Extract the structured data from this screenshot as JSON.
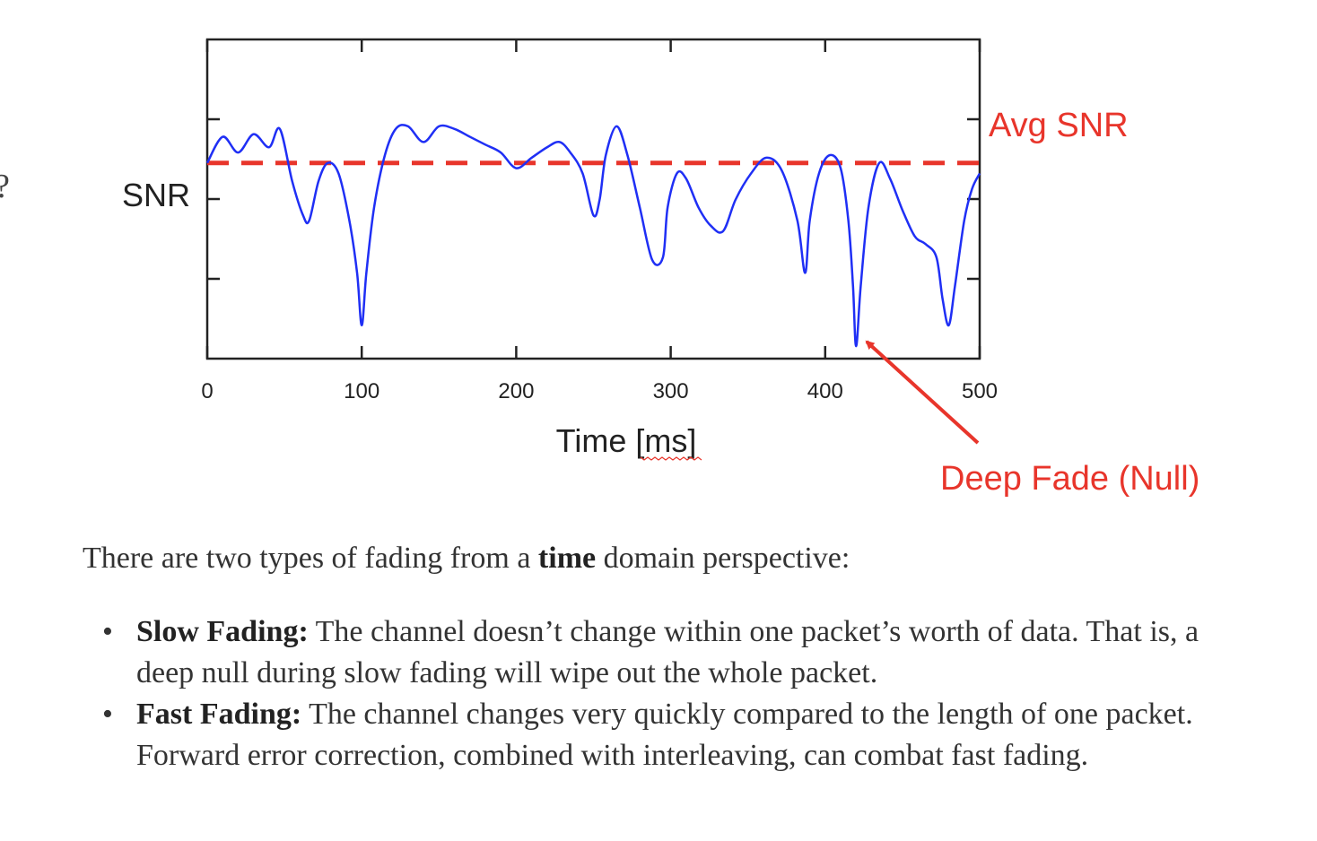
{
  "chart_data": {
    "type": "line",
    "xlabel": "Time [ms]",
    "ylabel": "SNR",
    "xlim": [
      0,
      500
    ],
    "x_ticks": [
      "0",
      "100",
      "200",
      "300",
      "400",
      "500"
    ],
    "y_range": [
      0,
      10
    ],
    "grid": false,
    "line_color": "#1f2ff5",
    "avg_line_color": "#e8352b",
    "avg_snr": 7.2,
    "avg_label": "Avg SNR",
    "null_label": "Deep Fade (Null)",
    "null_point": [
      420,
      0.2
    ],
    "series": [
      {
        "x": [
          0,
          10,
          20,
          30,
          40,
          47,
          55,
          62,
          66,
          72,
          78,
          85,
          92,
          97,
          100,
          103,
          108,
          115,
          122,
          130,
          140,
          150,
          160,
          170,
          180,
          190,
          200,
          210,
          220,
          228,
          235,
          243,
          250,
          254,
          258,
          265,
          272,
          280,
          288,
          295,
          298,
          304,
          310,
          318,
          326,
          334,
          342,
          352,
          362,
          372,
          382,
          387,
          390,
          396,
          403,
          410,
          415,
          418,
          420,
          423,
          428,
          435,
          442,
          450,
          458,
          465,
          472,
          476,
          480,
          484,
          490,
          495,
          500
        ],
        "y": [
          7.2,
          8.2,
          7.6,
          8.3,
          7.8,
          8.5,
          6.5,
          5.2,
          5.0,
          6.5,
          7.2,
          6.8,
          5.0,
          3.0,
          1.0,
          3.0,
          5.5,
          7.5,
          8.5,
          8.6,
          8.0,
          8.6,
          8.5,
          8.2,
          7.9,
          7.6,
          7.0,
          7.4,
          7.8,
          8.0,
          7.6,
          6.8,
          5.2,
          5.8,
          7.5,
          8.6,
          7.5,
          5.5,
          3.5,
          3.6,
          5.5,
          6.8,
          6.6,
          5.5,
          4.8,
          4.6,
          5.8,
          6.8,
          7.4,
          6.9,
          5.0,
          3.0,
          5.0,
          6.8,
          7.5,
          7.0,
          5.0,
          2.5,
          0.2,
          2.5,
          5.5,
          7.2,
          6.6,
          5.4,
          4.4,
          4.1,
          3.6,
          2.0,
          1.0,
          2.5,
          5.0,
          6.2,
          6.8
        ]
      }
    ]
  },
  "text": {
    "intro_pre": "There are two types of fading from a ",
    "intro_bold": "time",
    "intro_post": " domain perspective:",
    "bullets": [
      {
        "term": "Slow Fading:",
        "text": " The channel doesn’t change within one packet’s worth of data. That is, a deep null during slow fading will wipe out the whole packet."
      },
      {
        "term": "Fast Fading:",
        "text": " The channel changes very quickly compared to the length of one packet. Forward error correction, combined with interleaving, can combat fast fading."
      }
    ]
  }
}
